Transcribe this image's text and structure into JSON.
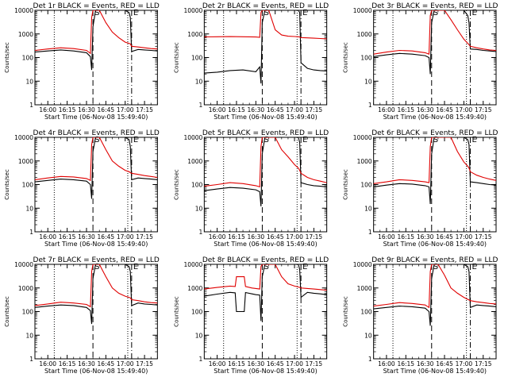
{
  "colors": {
    "events": "#000000",
    "lld": "#e00000",
    "axes": "#000000",
    "background": "#ffffff"
  },
  "chart_data": [
    {
      "type": "line",
      "title": "Det 1r BLACK = Events, RED = LLD",
      "xlabel": "Start Time (06-Nov-08 15:49:40)",
      "ylabel": "Counts/sec",
      "y_scale": "log",
      "ylim": [
        1,
        10000
      ],
      "xlim": [
        "15:50",
        "17:25"
      ],
      "x_ticks": [
        "16:00",
        "16:15",
        "16:30",
        "16:45",
        "17:00",
        "17:15"
      ],
      "y_ticks": [
        "1",
        "10",
        "100",
        "1000",
        "10000"
      ],
      "markers": {
        "S": "16:35",
        "E": "17:05"
      },
      "dotted_lines": [
        "16:05",
        "17:02"
      ],
      "x": [
        "15:50",
        "16:00",
        "16:10",
        "16:20",
        "16:30",
        "16:33",
        "16:34",
        "16:35",
        "16:37",
        "16:40",
        "16:45",
        "16:50",
        "16:55",
        "17:00",
        "17:03",
        "17:04",
        "17:05",
        "17:10",
        "17:15",
        "17:20",
        "17:25"
      ],
      "series": [
        {
          "name": "Events",
          "values": [
            170,
            190,
            210,
            190,
            160,
            110,
            30,
            2000,
            10000,
            10000,
            10000,
            10000,
            10000,
            10000,
            8000,
            5000,
            180,
            220,
            210,
            200,
            190
          ]
        },
        {
          "name": "LLD",
          "values": [
            200,
            230,
            260,
            240,
            200,
            150,
            5000,
            10000,
            10000,
            10000,
            3000,
            1200,
            700,
            450,
            400,
            380,
            300,
            280,
            260,
            240,
            230
          ]
        }
      ]
    },
    {
      "type": "line",
      "title": "Det 2r BLACK = Events, RED = LLD",
      "xlabel": "Start Time (06-Nov-08 15:49:40)",
      "ylabel": "Counts/sec",
      "y_scale": "log",
      "ylim": [
        1,
        10000
      ],
      "xlim": [
        "15:50",
        "17:25"
      ],
      "x_ticks": [
        "16:00",
        "16:15",
        "16:30",
        "16:45",
        "17:00",
        "17:15"
      ],
      "y_ticks": [
        "1",
        "10",
        "100",
        "1000",
        "10000"
      ],
      "markers": {
        "S": "16:35",
        "E": "17:05"
      },
      "dotted_lines": [
        "16:05",
        "17:02"
      ],
      "x": [
        "15:50",
        "16:00",
        "16:10",
        "16:20",
        "16:30",
        "16:33",
        "16:34",
        "16:35",
        "16:37",
        "16:40",
        "16:45",
        "16:50",
        "16:55",
        "17:00",
        "17:03",
        "17:04",
        "17:05",
        "17:10",
        "17:15",
        "17:20",
        "17:25"
      ],
      "series": [
        {
          "name": "Events",
          "values": [
            22,
            24,
            28,
            30,
            25,
            40,
            8,
            3000,
            10000,
            10000,
            10000,
            10000,
            10000,
            10000,
            10000,
            8000,
            60,
            35,
            30,
            28,
            27
          ]
        },
        {
          "name": "LLD",
          "values": [
            750,
            760,
            770,
            760,
            740,
            720,
            8000,
            10000,
            10000,
            10000,
            1500,
            900,
            800,
            780,
            760,
            740,
            700,
            680,
            660,
            640,
            620
          ]
        }
      ]
    },
    {
      "type": "line",
      "title": "Det 3r BLACK = Events, RED = LLD",
      "xlabel": "Start Time (06-Nov-08 15:49:40)",
      "ylabel": "Counts/sec",
      "y_scale": "log",
      "ylim": [
        1,
        10000
      ],
      "xlim": [
        "15:50",
        "17:25"
      ],
      "x_ticks": [
        "16:00",
        "16:15",
        "16:30",
        "16:45",
        "17:00",
        "17:15"
      ],
      "y_ticks": [
        "1",
        "10",
        "100",
        "1000",
        "10000"
      ],
      "markers": {
        "S": "16:35",
        "E": "17:05"
      },
      "dotted_lines": [
        "16:05",
        "17:02"
      ],
      "x": [
        "15:50",
        "16:00",
        "16:10",
        "16:20",
        "16:30",
        "16:33",
        "16:34",
        "16:35",
        "16:37",
        "16:40",
        "16:45",
        "16:50",
        "16:55",
        "17:00",
        "17:03",
        "17:04",
        "17:05",
        "17:10",
        "17:15",
        "17:20",
        "17:25"
      ],
      "series": [
        {
          "name": "Events",
          "values": [
            110,
            130,
            150,
            140,
            120,
            100,
            20,
            3000,
            10000,
            10000,
            10000,
            10000,
            10000,
            10000,
            6000,
            3000,
            230,
            220,
            200,
            190,
            180
          ]
        },
        {
          "name": "LLD",
          "values": [
            140,
            170,
            200,
            190,
            160,
            140,
            6000,
            10000,
            10000,
            10000,
            10000,
            4000,
            1500,
            600,
            400,
            350,
            300,
            260,
            230,
            210,
            200
          ]
        }
      ]
    },
    {
      "type": "line",
      "title": "Det 4r BLACK = Events, RED = LLD",
      "xlabel": "Start Time (06-Nov-08 15:49:40)",
      "ylabel": "Counts/sec",
      "y_scale": "log",
      "ylim": [
        1,
        10000
      ],
      "xlim": [
        "15:50",
        "17:25"
      ],
      "x_ticks": [
        "16:00",
        "16:15",
        "16:30",
        "16:45",
        "17:00",
        "17:15"
      ],
      "y_ticks": [
        "1",
        "10",
        "100",
        "1000",
        "10000"
      ],
      "markers": {
        "S": "16:35",
        "E": "17:05"
      },
      "dotted_lines": [
        "16:05",
        "17:02"
      ],
      "x": [
        "15:50",
        "16:00",
        "16:10",
        "16:20",
        "16:30",
        "16:33",
        "16:34",
        "16:35",
        "16:37",
        "16:40",
        "16:45",
        "16:50",
        "16:55",
        "17:00",
        "17:03",
        "17:04",
        "17:05",
        "17:10",
        "17:15",
        "17:20",
        "17:25"
      ],
      "series": [
        {
          "name": "Events",
          "values": [
            130,
            150,
            170,
            160,
            140,
            100,
            25,
            2500,
            10000,
            10000,
            10000,
            10000,
            10000,
            10000,
            8000,
            4000,
            160,
            190,
            180,
            170,
            160
          ]
        },
        {
          "name": "LLD",
          "values": [
            160,
            190,
            220,
            210,
            180,
            150,
            5000,
            10000,
            10000,
            10000,
            3000,
            1000,
            600,
            400,
            350,
            320,
            300,
            270,
            240,
            220,
            200
          ]
        }
      ]
    },
    {
      "type": "line",
      "title": "Det 5r BLACK = Events, RED = LLD",
      "xlabel": "Start Time (06-Nov-08 15:49:40)",
      "ylabel": "Counts/sec",
      "y_scale": "log",
      "ylim": [
        1,
        10000
      ],
      "xlim": [
        "15:50",
        "17:25"
      ],
      "x_ticks": [
        "16:00",
        "16:15",
        "16:30",
        "16:45",
        "17:00",
        "17:15"
      ],
      "y_ticks": [
        "1",
        "10",
        "100",
        "1000",
        "10000"
      ],
      "markers": {
        "S": "16:35",
        "E": "17:05"
      },
      "dotted_lines": [
        "16:05",
        "17:02"
      ],
      "x": [
        "15:50",
        "16:00",
        "16:10",
        "16:20",
        "16:30",
        "16:33",
        "16:34",
        "16:35",
        "16:37",
        "16:40",
        "16:45",
        "16:50",
        "16:55",
        "17:00",
        "17:03",
        "17:04",
        "17:05",
        "17:10",
        "17:15",
        "17:20",
        "17:25"
      ],
      "series": [
        {
          "name": "Events",
          "values": [
            55,
            65,
            75,
            70,
            60,
            50,
            12,
            2000,
            10000,
            10000,
            10000,
            10000,
            10000,
            10000,
            10000,
            6000,
            120,
            100,
            90,
            85,
            80
          ]
        },
        {
          "name": "LLD",
          "values": [
            85,
            100,
            120,
            110,
            90,
            80,
            4000,
            10000,
            10000,
            10000,
            10000,
            3000,
            1500,
            700,
            500,
            400,
            300,
            200,
            160,
            140,
            120
          ]
        }
      ]
    },
    {
      "type": "line",
      "title": "Det 6r BLACK = Events, RED = LLD",
      "xlabel": "Start Time (06-Nov-08 15:49:40)",
      "ylabel": "Counts/sec",
      "y_scale": "log",
      "ylim": [
        1,
        10000
      ],
      "xlim": [
        "15:50",
        "17:25"
      ],
      "x_ticks": [
        "16:00",
        "16:15",
        "16:30",
        "16:45",
        "17:00",
        "17:15"
      ],
      "y_ticks": [
        "1",
        "10",
        "100",
        "1000",
        "10000"
      ],
      "markers": {
        "S": "16:35",
        "E": "17:05"
      },
      "dotted_lines": [
        "16:05",
        "17:02"
      ],
      "x": [
        "15:50",
        "16:00",
        "16:10",
        "16:20",
        "16:30",
        "16:33",
        "16:34",
        "16:35",
        "16:37",
        "16:40",
        "16:45",
        "16:50",
        "16:55",
        "17:00",
        "17:03",
        "17:04",
        "17:05",
        "17:10",
        "17:15",
        "17:20",
        "17:25"
      ],
      "series": [
        {
          "name": "Events",
          "values": [
            80,
            95,
            110,
            105,
            90,
            80,
            15,
            2000,
            10000,
            10000,
            10000,
            10000,
            10000,
            10000,
            8000,
            5000,
            130,
            120,
            110,
            100,
            95
          ]
        },
        {
          "name": "LLD",
          "values": [
            110,
            130,
            160,
            150,
            130,
            120,
            4000,
            10000,
            10000,
            10000,
            10000,
            10000,
            2500,
            900,
            600,
            500,
            350,
            250,
            200,
            170,
            150
          ]
        }
      ]
    },
    {
      "type": "line",
      "title": "Det 7r BLACK = Events, RED = LLD",
      "xlabel": "Start Time (06-Nov-08 15:49:40)",
      "ylabel": "Counts/sec",
      "y_scale": "log",
      "ylim": [
        1,
        10000
      ],
      "xlim": [
        "15:50",
        "17:25"
      ],
      "x_ticks": [
        "16:00",
        "16:15",
        "16:30",
        "16:45",
        "17:00",
        "17:15"
      ],
      "y_ticks": [
        "1",
        "10",
        "100",
        "1000",
        "10000"
      ],
      "markers": {
        "S": "16:35",
        "E": "17:05"
      },
      "dotted_lines": [
        "16:05",
        "17:02"
      ],
      "x": [
        "15:50",
        "16:00",
        "16:10",
        "16:20",
        "16:30",
        "16:33",
        "16:34",
        "16:35",
        "16:37",
        "16:40",
        "16:45",
        "16:50",
        "16:55",
        "17:00",
        "17:03",
        "17:04",
        "17:05",
        "17:10",
        "17:15",
        "17:20",
        "17:25"
      ],
      "series": [
        {
          "name": "Events",
          "values": [
            150,
            170,
            190,
            180,
            150,
            110,
            30,
            2500,
            10000,
            10000,
            10000,
            10000,
            10000,
            10000,
            8000,
            5000,
            180,
            230,
            210,
            200,
            190
          ]
        },
        {
          "name": "LLD",
          "values": [
            180,
            210,
            250,
            230,
            200,
            160,
            5000,
            10000,
            10000,
            10000,
            3000,
            1000,
            600,
            450,
            400,
            380,
            320,
            290,
            260,
            240,
            230
          ]
        }
      ]
    },
    {
      "type": "line",
      "title": "Det 8r BLACK = Events, RED = LLD",
      "xlabel": "Start Time (06-Nov-08 15:49:40)",
      "ylabel": "Counts/sec",
      "y_scale": "log",
      "ylim": [
        1,
        10000
      ],
      "xlim": [
        "15:50",
        "17:25"
      ],
      "x_ticks": [
        "16:00",
        "16:15",
        "16:30",
        "16:45",
        "17:00",
        "17:15"
      ],
      "y_ticks": [
        "1",
        "10",
        "100",
        "1000",
        "10000"
      ],
      "markers": {
        "S": "16:35",
        "E": "17:05"
      },
      "dotted_lines": [
        "16:05",
        "17:02"
      ],
      "x": [
        "15:50",
        "16:00",
        "16:10",
        "16:14",
        "16:15",
        "16:21",
        "16:22",
        "16:27",
        "16:30",
        "16:33",
        "16:34",
        "16:35",
        "16:37",
        "16:40",
        "16:45",
        "16:50",
        "16:55",
        "17:00",
        "17:03",
        "17:04",
        "17:05",
        "17:10",
        "17:15",
        "17:20",
        "17:25"
      ],
      "series": [
        {
          "name": "Events",
          "values": [
            450,
            550,
            650,
            620,
            100,
            100,
            640,
            560,
            520,
            500,
            40,
            3000,
            10000,
            10000,
            10000,
            10000,
            10000,
            10000,
            10000,
            6000,
            400,
            650,
            600,
            560,
            520
          ]
        },
        {
          "name": "LLD",
          "values": [
            900,
            1050,
            1200,
            1150,
            3000,
            3000,
            1150,
            1000,
            950,
            900,
            8000,
            10000,
            10000,
            10000,
            10000,
            3000,
            1500,
            1200,
            1100,
            1050,
            1000,
            950,
            900,
            850,
            800
          ]
        }
      ]
    },
    {
      "type": "line",
      "title": "Det 9r BLACK = Events, RED = LLD",
      "xlabel": "Start Time (06-Nov-08 15:49:40)",
      "ylabel": "Counts/sec",
      "y_scale": "log",
      "ylim": [
        1,
        10000
      ],
      "xlim": [
        "15:50",
        "17:25"
      ],
      "x_ticks": [
        "16:00",
        "16:15",
        "16:30",
        "16:45",
        "17:00",
        "17:15"
      ],
      "y_ticks": [
        "1",
        "10",
        "100",
        "1000",
        "10000"
      ],
      "markers": {
        "S": "16:35",
        "E": "17:05"
      },
      "dotted_lines": [
        "16:05",
        "17:02"
      ],
      "x": [
        "15:50",
        "16:00",
        "16:10",
        "16:20",
        "16:30",
        "16:33",
        "16:34",
        "16:35",
        "16:37",
        "16:40",
        "16:45",
        "16:50",
        "16:55",
        "17:00",
        "17:03",
        "17:04",
        "17:05",
        "17:10",
        "17:15",
        "17:20",
        "17:25"
      ],
      "series": [
        {
          "name": "Events",
          "values": [
            130,
            150,
            170,
            160,
            140,
            100,
            25,
            2500,
            10000,
            10000,
            10000,
            10000,
            10000,
            10000,
            8000,
            5000,
            150,
            190,
            180,
            170,
            160
          ]
        },
        {
          "name": "LLD",
          "values": [
            170,
            200,
            240,
            220,
            190,
            150,
            5000,
            10000,
            10000,
            10000,
            3500,
            1000,
            600,
            400,
            330,
            310,
            290,
            260,
            240,
            220,
            210
          ]
        }
      ]
    }
  ]
}
